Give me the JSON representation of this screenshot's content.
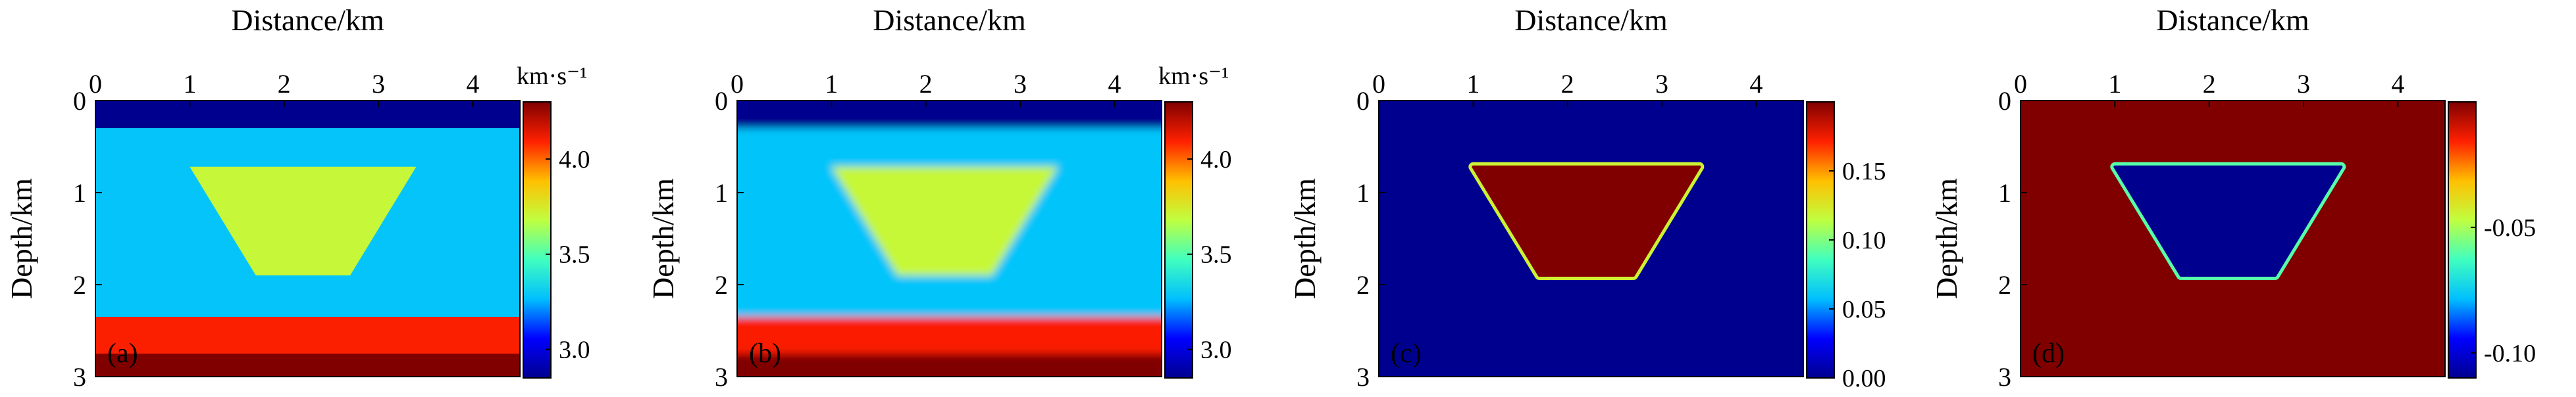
{
  "chart_data": [
    {
      "type": "heatmap",
      "panel_label": "(a)",
      "xlabel": "Distance/km",
      "ylabel": "Depth/km",
      "xlim": [
        0,
        4.5
      ],
      "ylim": [
        0,
        3
      ],
      "xticks": [
        "0",
        "1",
        "2",
        "3",
        "4"
      ],
      "yticks": [
        "0",
        "1",
        "2",
        "3"
      ],
      "units": "km·s⁻¹",
      "colorbar": {
        "range": [
          2.85,
          4.3
        ],
        "ticks": [
          3.0,
          3.5,
          4.0
        ],
        "tick_labels": [
          "3.0",
          "3.5",
          "4.0"
        ]
      },
      "layers": [
        {
          "top": 0.0,
          "bottom": 0.3,
          "value": 2.85
        },
        {
          "top": 0.3,
          "bottom": 2.35,
          "value": 3.28
        },
        {
          "top": 2.35,
          "bottom": 2.75,
          "value": 4.1
        },
        {
          "top": 2.75,
          "bottom": 3.0,
          "value": 4.3
        }
      ],
      "anomaly": {
        "shape": "trapezoid",
        "top_depth": 0.72,
        "bottom_depth": 1.9,
        "top_x": [
          1.0,
          3.4
        ],
        "bottom_x": [
          1.7,
          2.7
        ],
        "value": 3.7
      },
      "smoothing": 0
    },
    {
      "type": "heatmap",
      "panel_label": "(b)",
      "xlabel": "Distance/km",
      "ylabel": "Depth/km",
      "xlim": [
        0,
        4.5
      ],
      "ylim": [
        0,
        3
      ],
      "xticks": [
        "0",
        "1",
        "2",
        "3",
        "4"
      ],
      "yticks": [
        "0",
        "1",
        "2",
        "3"
      ],
      "units": "km·s⁻¹",
      "colorbar": {
        "range": [
          2.85,
          4.3
        ],
        "ticks": [
          3.0,
          3.5,
          4.0
        ],
        "tick_labels": [
          "3.0",
          "3.5",
          "4.0"
        ]
      },
      "layers": [
        {
          "top": 0.0,
          "bottom": 0.3,
          "value": 2.85
        },
        {
          "top": 0.3,
          "bottom": 2.35,
          "value": 3.28
        },
        {
          "top": 2.35,
          "bottom": 2.75,
          "value": 4.1
        },
        {
          "top": 2.75,
          "bottom": 3.0,
          "value": 4.3
        }
      ],
      "anomaly": {
        "shape": "trapezoid",
        "top_depth": 0.72,
        "bottom_depth": 1.9,
        "top_x": [
          1.0,
          3.4
        ],
        "bottom_x": [
          1.7,
          2.7
        ],
        "value": 3.7
      },
      "smoothing": 1
    },
    {
      "type": "heatmap",
      "panel_label": "(c)",
      "xlabel": "Distance/km",
      "ylabel": "Depth/km",
      "xlim": [
        0,
        4.5
      ],
      "ylim": [
        0,
        3
      ],
      "xticks": [
        "0",
        "1",
        "2",
        "3",
        "4"
      ],
      "yticks": [
        "0",
        "1",
        "2",
        "3"
      ],
      "units": "",
      "colorbar": {
        "range": [
          0.0,
          0.2
        ],
        "ticks": [
          0.0,
          0.05,
          0.1,
          0.15
        ],
        "tick_labels": [
          "0.00",
          "0.05",
          "0.10",
          "0.15"
        ]
      },
      "background_value": 0.0,
      "anomaly": {
        "shape": "trapezoid",
        "top_depth": 0.72,
        "bottom_depth": 1.9,
        "top_x": [
          1.0,
          3.4
        ],
        "bottom_x": [
          1.7,
          2.7
        ],
        "value": 0.2,
        "edge_value": 0.12
      },
      "smoothing": 0
    },
    {
      "type": "heatmap",
      "panel_label": "(d)",
      "xlabel": "Distance/km",
      "ylabel": "Depth/km",
      "xlim": [
        0,
        4.5
      ],
      "ylim": [
        0,
        3
      ],
      "xticks": [
        "0",
        "1",
        "2",
        "3",
        "4"
      ],
      "yticks": [
        "0",
        "1",
        "2",
        "3"
      ],
      "units": "",
      "colorbar": {
        "range": [
          -0.11,
          0.0
        ],
        "ticks": [
          -0.1,
          -0.05
        ],
        "tick_labels": [
          "-0.10",
          "-0.05"
        ]
      },
      "background_value": 0.0,
      "anomaly": {
        "shape": "trapezoid",
        "top_depth": 0.72,
        "bottom_depth": 1.9,
        "top_x": [
          1.0,
          3.4
        ],
        "bottom_x": [
          1.7,
          2.7
        ],
        "value": -0.11,
        "edge_value": -0.06
      },
      "smoothing": 0
    }
  ],
  "colormap": [
    "#00008f",
    "#0000ff",
    "#00bfff",
    "#40ffbf",
    "#bfff40",
    "#ffbf00",
    "#ff2000",
    "#800000"
  ]
}
